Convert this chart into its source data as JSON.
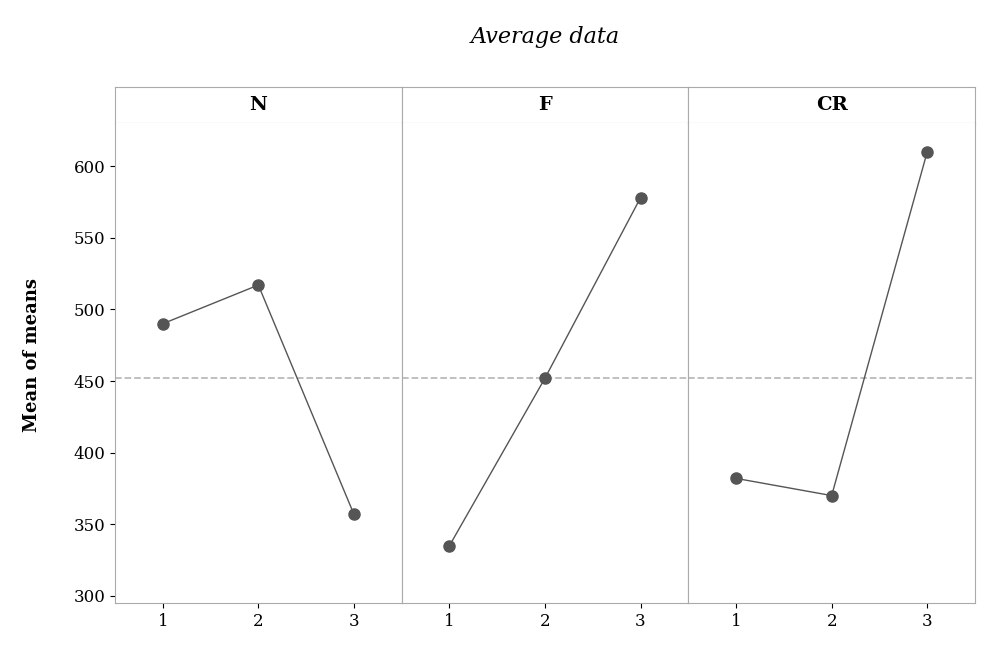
{
  "title": "Average data",
  "ylabel": "Mean of means",
  "panels": [
    "N",
    "F",
    "CR"
  ],
  "x_values": [
    1,
    2,
    3
  ],
  "series": {
    "N": [
      490,
      517,
      357
    ],
    "F": [
      335,
      452,
      578
    ],
    "CR": [
      382,
      370,
      610
    ]
  },
  "dashed_line_y": 452,
  "ylim": [
    295,
    630
  ],
  "yticks": [
    300,
    350,
    400,
    450,
    500,
    550,
    600
  ],
  "xticks": [
    1,
    2,
    3
  ],
  "line_color": "#555555",
  "marker_color": "#555555",
  "dashed_color": "#bbbbbb",
  "bg_color": "#ffffff",
  "panel_header_fontsize": 14,
  "title_fontsize": 16,
  "axis_label_fontsize": 13,
  "tick_fontsize": 12,
  "marker_size": 8,
  "line_width": 1.0,
  "spine_color": "#aaaaaa",
  "header_bg": "#f5f5f5"
}
